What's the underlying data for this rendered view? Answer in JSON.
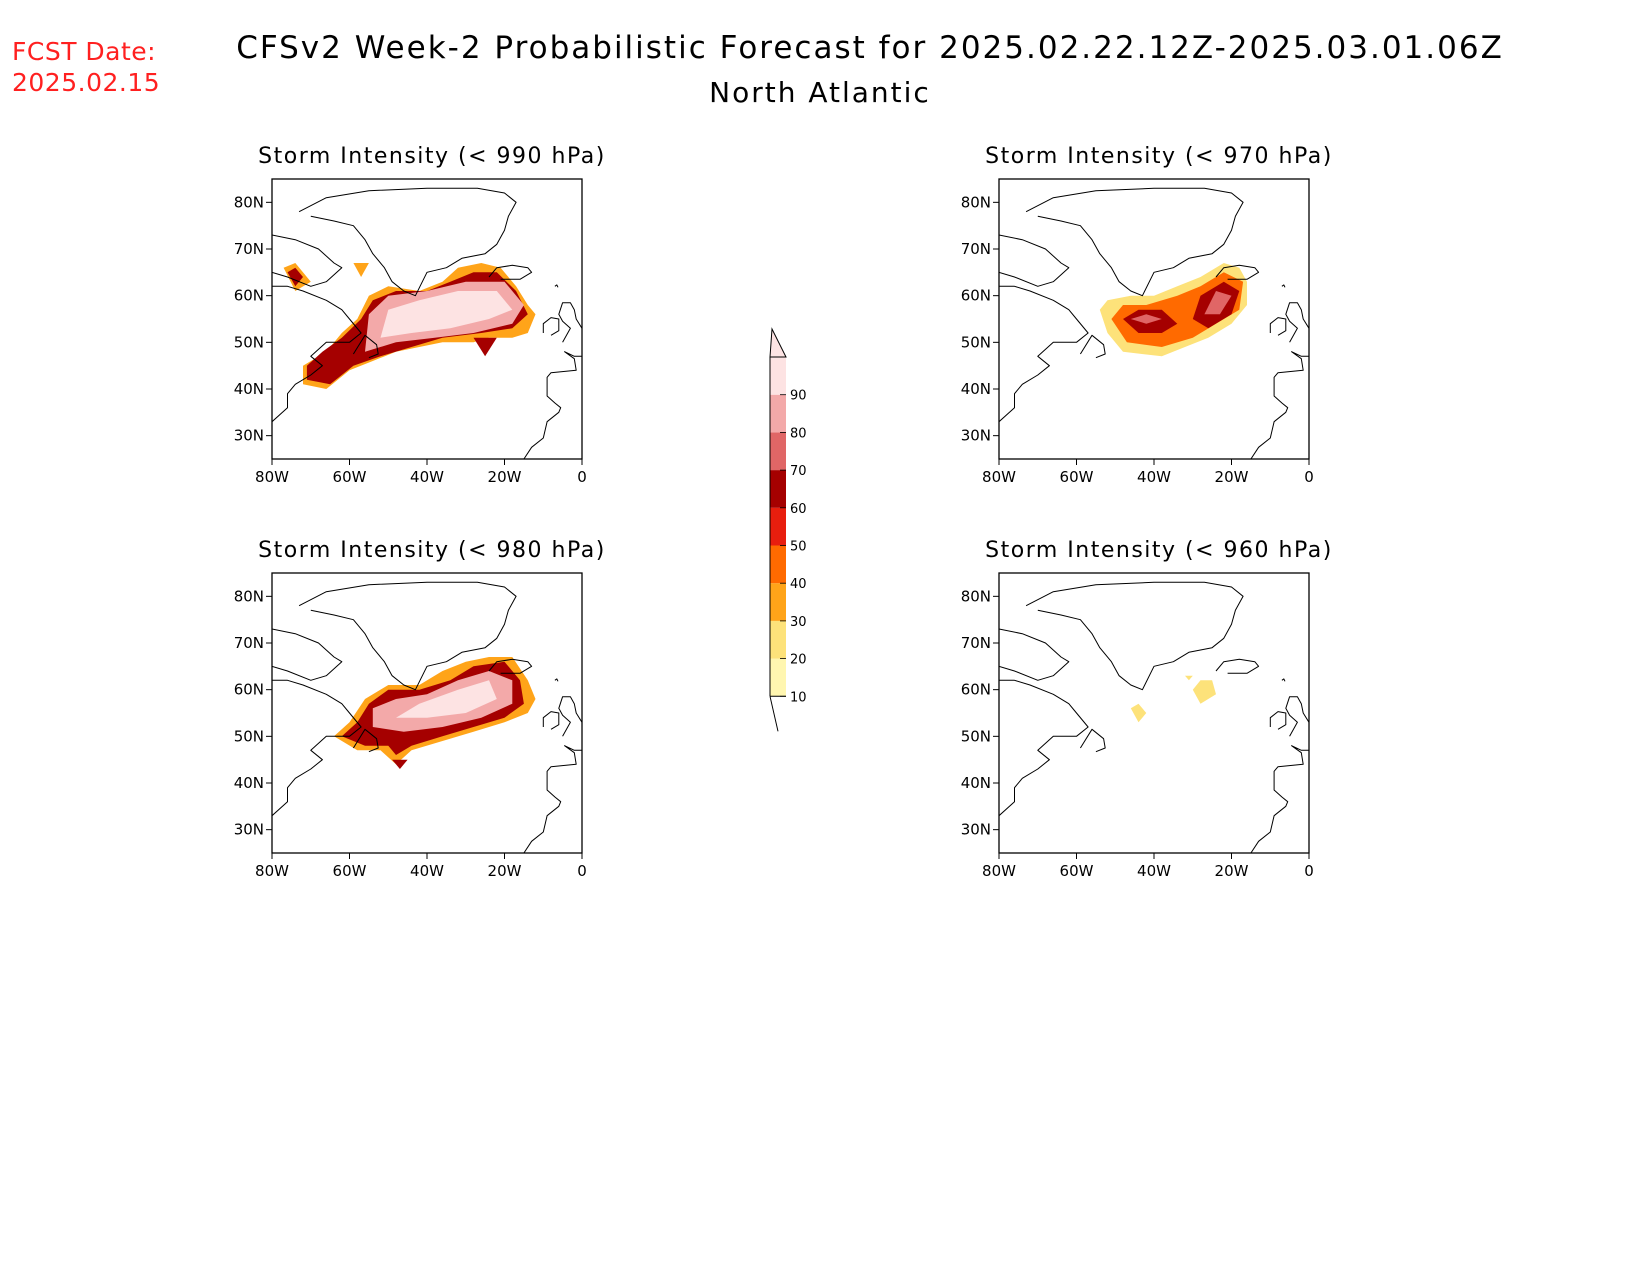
{
  "header": {
    "fcst_label": "FCST Date:",
    "fcst_date": "2025.02.15",
    "title": "CFSv2 Week-2 Probabilistic Forecast for 2025.02.22.12Z-2025.03.01.06Z",
    "region": "North Atlantic"
  },
  "axes": {
    "x_ticks": [
      "80W",
      "60W",
      "40W",
      "20W",
      "0"
    ],
    "y_ticks": [
      "80N",
      "70N",
      "60N",
      "50N",
      "40N",
      "30N"
    ],
    "lon_range": [
      -80,
      0
    ],
    "lat_range": [
      25,
      85
    ]
  },
  "colorbar": {
    "levels": [
      "10",
      "20",
      "30",
      "40",
      "50",
      "60",
      "70",
      "80",
      "90"
    ],
    "colors": [
      "#fff6b0",
      "#fde27a",
      "#ffa419",
      "#ff6a00",
      "#e81e0e",
      "#a50000",
      "#e06666",
      "#f3a9a9",
      "#fde3e3"
    ]
  },
  "panels": [
    {
      "title": "Storm Intensity (< 990 hPa)",
      "regions": [
        {
          "level": 2,
          "points": [
            [
              -72,
              41
            ],
            [
              -66,
              40
            ],
            [
              -60,
              44
            ],
            [
              -54,
              46
            ],
            [
              -48,
              48
            ],
            [
              -42,
              49
            ],
            [
              -36,
              50
            ],
            [
              -32,
              50
            ],
            [
              -28,
              50
            ],
            [
              -24,
              51
            ],
            [
              -18,
              51
            ],
            [
              -14,
              52
            ],
            [
              -12,
              56
            ],
            [
              -14,
              58
            ],
            [
              -17,
              62
            ],
            [
              -21,
              66
            ],
            [
              -26,
              67
            ],
            [
              -32,
              66
            ],
            [
              -36,
              63
            ],
            [
              -42,
              61
            ],
            [
              -50,
              62
            ],
            [
              -55,
              60
            ],
            [
              -58,
              55
            ],
            [
              -62,
              52
            ],
            [
              -66,
              48
            ],
            [
              -72,
              45
            ]
          ]
        },
        {
          "level": 5,
          "points": [
            [
              -71,
              42
            ],
            [
              -65,
              41
            ],
            [
              -59,
              45
            ],
            [
              -52,
              47
            ],
            [
              -44,
              49
            ],
            [
              -36,
              51
            ],
            [
              -26,
              52
            ],
            [
              -18,
              53
            ],
            [
              -14,
              56
            ],
            [
              -17,
              61
            ],
            [
              -22,
              65
            ],
            [
              -28,
              65
            ],
            [
              -34,
              63
            ],
            [
              -40,
              61
            ],
            [
              -48,
              61
            ],
            [
              -54,
              59
            ],
            [
              -57,
              55
            ],
            [
              -62,
              51
            ],
            [
              -67,
              48
            ],
            [
              -71,
              45
            ]
          ]
        },
        {
          "level": 7,
          "points": [
            [
              -56,
              48
            ],
            [
              -48,
              50
            ],
            [
              -38,
              51
            ],
            [
              -28,
              52
            ],
            [
              -18,
              54
            ],
            [
              -15,
              58
            ],
            [
              -20,
              63
            ],
            [
              -30,
              63
            ],
            [
              -40,
              61
            ],
            [
              -50,
              60
            ],
            [
              -55,
              56
            ]
          ]
        },
        {
          "level": 8,
          "points": [
            [
              -52,
              51
            ],
            [
              -44,
              52
            ],
            [
              -34,
              53
            ],
            [
              -24,
              55
            ],
            [
              -18,
              57
            ],
            [
              -22,
              61
            ],
            [
              -32,
              61
            ],
            [
              -42,
              59
            ],
            [
              -50,
              57
            ]
          ]
        },
        {
          "level": 2,
          "points": [
            [
              -77,
              66
            ],
            [
              -74,
              61
            ],
            [
              -70,
              63
            ],
            [
              -74,
              67
            ]
          ]
        },
        {
          "level": 5,
          "points": [
            [
              -76,
              65
            ],
            [
              -74,
              62
            ],
            [
              -72,
              64
            ],
            [
              -74,
              66
            ]
          ]
        },
        {
          "level": 2,
          "points": [
            [
              -59,
              67
            ],
            [
              -57,
              64
            ],
            [
              -55,
              67
            ]
          ]
        },
        {
          "level": 5,
          "points": [
            [
              -28,
              51
            ],
            [
              -25,
              47
            ],
            [
              -22,
              51
            ]
          ]
        }
      ]
    },
    {
      "title": "Storm Intensity (< 970 hPa)",
      "regions": [
        {
          "level": 1,
          "points": [
            [
              -54,
              57
            ],
            [
              -52,
              52
            ],
            [
              -48,
              48
            ],
            [
              -38,
              47
            ],
            [
              -32,
              49
            ],
            [
              -26,
              51
            ],
            [
              -20,
              54
            ],
            [
              -16,
              58
            ],
            [
              -16,
              63
            ],
            [
              -18,
              66
            ],
            [
              -22,
              67
            ],
            [
              -28,
              64
            ],
            [
              -34,
              62
            ],
            [
              -40,
              60
            ],
            [
              -46,
              60
            ],
            [
              -52,
              59
            ]
          ]
        },
        {
          "level": 3,
          "points": [
            [
              -51,
              55
            ],
            [
              -47,
              50
            ],
            [
              -38,
              49
            ],
            [
              -30,
              51
            ],
            [
              -24,
              54
            ],
            [
              -18,
              57
            ],
            [
              -17,
              63
            ],
            [
              -22,
              65
            ],
            [
              -28,
              62
            ],
            [
              -34,
              60
            ],
            [
              -42,
              58
            ],
            [
              -48,
              58
            ]
          ]
        },
        {
          "level": 5,
          "points": [
            [
              -48,
              55
            ],
            [
              -44,
              52
            ],
            [
              -38,
              52
            ],
            [
              -34,
              54
            ],
            [
              -38,
              57
            ],
            [
              -44,
              57
            ]
          ]
        },
        {
          "level": 5,
          "points": [
            [
              -30,
              55
            ],
            [
              -26,
              53
            ],
            [
              -20,
              56
            ],
            [
              -18,
              61
            ],
            [
              -22,
              63
            ],
            [
              -28,
              60
            ]
          ]
        },
        {
          "level": 6,
          "points": [
            [
              -46,
              55
            ],
            [
              -42,
              54
            ],
            [
              -38,
              55
            ],
            [
              -42,
              56
            ]
          ]
        },
        {
          "level": 6,
          "points": [
            [
              -27,
              56
            ],
            [
              -23,
              56
            ],
            [
              -20,
              60
            ],
            [
              -24,
              61
            ]
          ]
        }
      ]
    },
    {
      "title": "Storm Intensity (< 980 hPa)",
      "regions": [
        {
          "level": 2,
          "points": [
            [
              -64,
              50
            ],
            [
              -58,
              47
            ],
            [
              -52,
              47
            ],
            [
              -48,
              44
            ],
            [
              -44,
              47
            ],
            [
              -36,
              49
            ],
            [
              -28,
              51
            ],
            [
              -20,
              53
            ],
            [
              -14,
              55
            ],
            [
              -12,
              58
            ],
            [
              -14,
              62
            ],
            [
              -18,
              67
            ],
            [
              -24,
              67
            ],
            [
              -30,
              66
            ],
            [
              -36,
              64
            ],
            [
              -42,
              61
            ],
            [
              -50,
              61
            ],
            [
              -56,
              58
            ],
            [
              -60,
              53
            ]
          ]
        },
        {
          "level": 5,
          "points": [
            [
              -62,
              50
            ],
            [
              -56,
              48
            ],
            [
              -50,
              48
            ],
            [
              -48,
              46
            ],
            [
              -44,
              48
            ],
            [
              -36,
              50
            ],
            [
              -28,
              52
            ],
            [
              -20,
              54
            ],
            [
              -15,
              57
            ],
            [
              -16,
              62
            ],
            [
              -20,
              66
            ],
            [
              -28,
              65
            ],
            [
              -34,
              62
            ],
            [
              -42,
              60
            ],
            [
              -50,
              60
            ],
            [
              -55,
              57
            ],
            [
              -58,
              53
            ]
          ]
        },
        {
          "level": 7,
          "points": [
            [
              -54,
              52
            ],
            [
              -46,
              51
            ],
            [
              -36,
              52
            ],
            [
              -26,
              54
            ],
            [
              -18,
              57
            ],
            [
              -18,
              62
            ],
            [
              -24,
              64
            ],
            [
              -32,
              62
            ],
            [
              -40,
              59
            ],
            [
              -48,
              58
            ],
            [
              -54,
              56
            ]
          ]
        },
        {
          "level": 8,
          "points": [
            [
              -48,
              54
            ],
            [
              -40,
              54
            ],
            [
              -30,
              55
            ],
            [
              -22,
              58
            ],
            [
              -24,
              62
            ],
            [
              -32,
              60
            ],
            [
              -42,
              57
            ]
          ]
        },
        {
          "level": 5,
          "points": [
            [
              -49,
              45
            ],
            [
              -47,
              43
            ],
            [
              -45,
              45
            ]
          ]
        }
      ]
    },
    {
      "title": "Storm Intensity (< 960 hPa)",
      "regions": [
        {
          "level": 1,
          "points": [
            [
              -46,
              56
            ],
            [
              -44,
              53
            ],
            [
              -42,
              55
            ],
            [
              -44,
              57
            ]
          ]
        },
        {
          "level": 1,
          "points": [
            [
              -30,
              60
            ],
            [
              -28,
              57
            ],
            [
              -24,
              59
            ],
            [
              -25,
              62
            ],
            [
              -28,
              62
            ]
          ]
        },
        {
          "level": 1,
          "points": [
            [
              -32,
              63
            ],
            [
              -31,
              62
            ],
            [
              -30,
              63
            ]
          ]
        }
      ]
    }
  ]
}
